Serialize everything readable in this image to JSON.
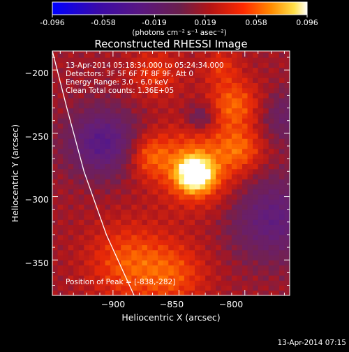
{
  "colorbar": {
    "tick_labels": [
      "-0.096",
      "-0.058",
      "-0.019",
      "0.019",
      "0.058",
      "0.096"
    ],
    "range": [
      -0.096,
      0.096
    ],
    "units": "(photons cm⁻² s⁻¹ asec⁻²)"
  },
  "chart_data": {
    "type": "heatmap",
    "title": "Reconstructed RHESSI Image",
    "xlabel": "Heliocentric X (arcsec)",
    "ylabel": "Heliocentric Y (arcsec)",
    "xlim": [
      -946,
      -766
    ],
    "ylim": [
      -378,
      -185
    ],
    "x_ticks": [
      -900,
      -850,
      -800
    ],
    "y_ticks": [
      -200,
      -250,
      -300,
      -350
    ],
    "x_tick_labels": [
      "−900",
      "−850",
      "−800"
    ],
    "y_tick_labels": [
      "−200",
      "−250",
      "−300",
      "−350"
    ],
    "annotations": [
      "13-Apr-2014 05:18:34.000 to 05:24:34.000",
      "Detectors: 3F 5F 6F 7F 8F 9F, Att 0",
      "Energy Range: 3.0 - 6.0 keV",
      "Clean     Total counts: 1.36E+05"
    ],
    "peak_label": "Position of Peak = [-838,-282]",
    "peak": {
      "x": -838,
      "y": -282
    },
    "limb_curve": [
      [
        -946,
        -185
      ],
      [
        -935,
        -230
      ],
      [
        -922,
        -280
      ],
      [
        -905,
        -330
      ],
      [
        -884,
        -378
      ]
    ]
  },
  "footer": {
    "timestamp": "13-Apr-2014 07:15"
  }
}
